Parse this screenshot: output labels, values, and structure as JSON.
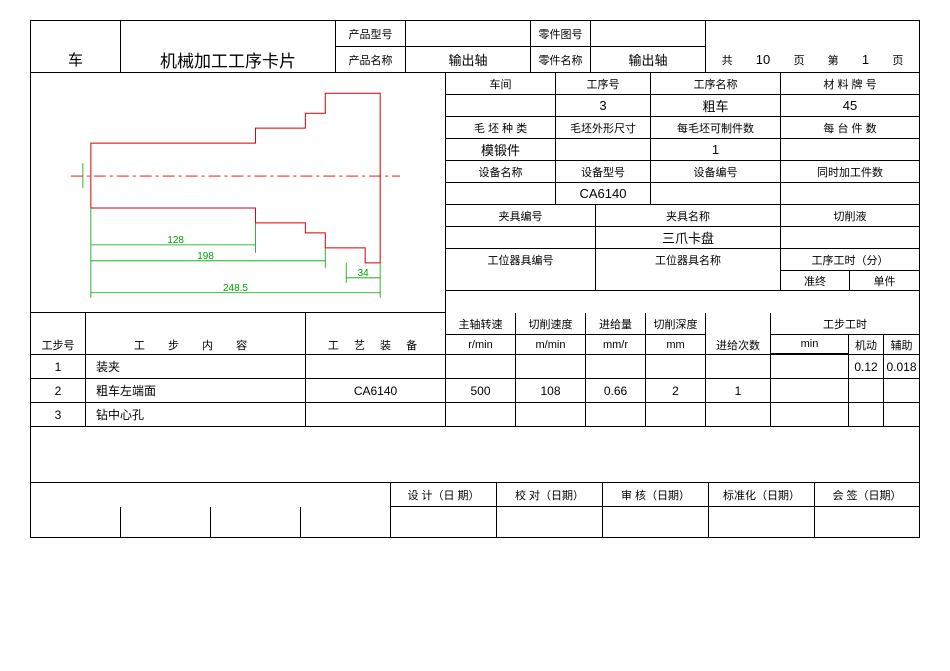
{
  "header": {
    "col1": "车",
    "title": "机械加工工序卡片",
    "productModelLabel": "产品型号",
    "productModel": "",
    "partDrawingNoLabel": "零件图号",
    "partDrawingNo": "",
    "productNameLabel": "产品名称",
    "productName": "输出轴",
    "partNameLabel": "零件名称",
    "partName": "输出轴",
    "totalPagesPrefix": "共",
    "totalPages": "10",
    "pageUnit": "页",
    "pagePrefix": "第",
    "pageNo": "1",
    "pageSuffix": "页"
  },
  "info": {
    "workshopLabel": "车间",
    "workshop": "",
    "procNoLabel": "工序号",
    "procNo": "3",
    "procNameLabel": "工序名称",
    "procName": "粗车",
    "materialLabel": "材 料 牌 号",
    "material": "45",
    "blankTypeLabel": "毛 坯 种 类",
    "blankType": "模锻件",
    "blankDimLabel": "毛坯外形尺寸",
    "blankDim": "",
    "perBlankLabel": "每毛坯可制件数",
    "perBlank": "1",
    "perBatchLabel": "每 台 件 数",
    "perBatch": "",
    "equipNameLabel": "设备名称",
    "equipName": "",
    "equipModelLabel": "设备型号",
    "equipModel": "CA6140",
    "equipNoLabel": "设备编号",
    "equipNo": "",
    "simulLabel": "同时加工件数",
    "simul": "",
    "fixtureNoLabel": "夹具编号",
    "fixtureNo": "",
    "fixtureNameLabel": "夹具名称",
    "fixtureName": "三爪卡盘",
    "coolantLabel": "切削液",
    "coolant": "",
    "toolNoLabel": "工位器具编号",
    "toolNo": "",
    "toolNameLabel": "工位器具名称",
    "toolName": "",
    "procTimeLabel": "工序工时（分）",
    "prepLabel": "准终",
    "prep": "",
    "unitLabel": "单件",
    "unit": ""
  },
  "stepHeader": {
    "stepNo": "工步号",
    "stepContent": "工 步 内 容",
    "tooling": "工 艺 装 备",
    "spindle": "主轴转速",
    "spindleUnit": "r/min",
    "cutSpeed": "切削速度",
    "cutSpeedUnit": "m/min",
    "feed": "进给量",
    "feedUnit": "mm/r",
    "depth": "切削深度",
    "depthUnit": "mm",
    "feedCount": "进给次数",
    "stepTime": "工步工时",
    "stepTimeUnit": "min",
    "machine": "机动",
    "aux": "辅助"
  },
  "steps": [
    {
      "no": "1",
      "content": "装夹",
      "tooling": "",
      "spindle": "",
      "cutSpeed": "",
      "feed": "",
      "depth": "",
      "feedCount": "",
      "machine": "0.12",
      "aux": "0.018"
    },
    {
      "no": "2",
      "content": "粗车左端面",
      "tooling": "CA6140",
      "spindle": "500",
      "cutSpeed": "108",
      "feed": "0.66",
      "depth": "2",
      "feedCount": "1",
      "machine": "",
      "aux": ""
    },
    {
      "no": "3",
      "content": "钻中心孔",
      "tooling": "",
      "spindle": "",
      "cutSpeed": "",
      "feed": "",
      "depth": "",
      "feedCount": "",
      "machine": "",
      "aux": ""
    }
  ],
  "footer": {
    "design": "设 计（日 期）",
    "check": "校 对（日期）",
    "review": "审 核（日期）",
    "standard": "标准化（日期）",
    "sign": "会 签（日期）"
  },
  "drawing": {
    "outlineColor": "#d40000",
    "dimColor": "#00a000",
    "dims": {
      "d128": "128",
      "d198": "198",
      "d2485": "248.5",
      "d34": "34"
    }
  }
}
